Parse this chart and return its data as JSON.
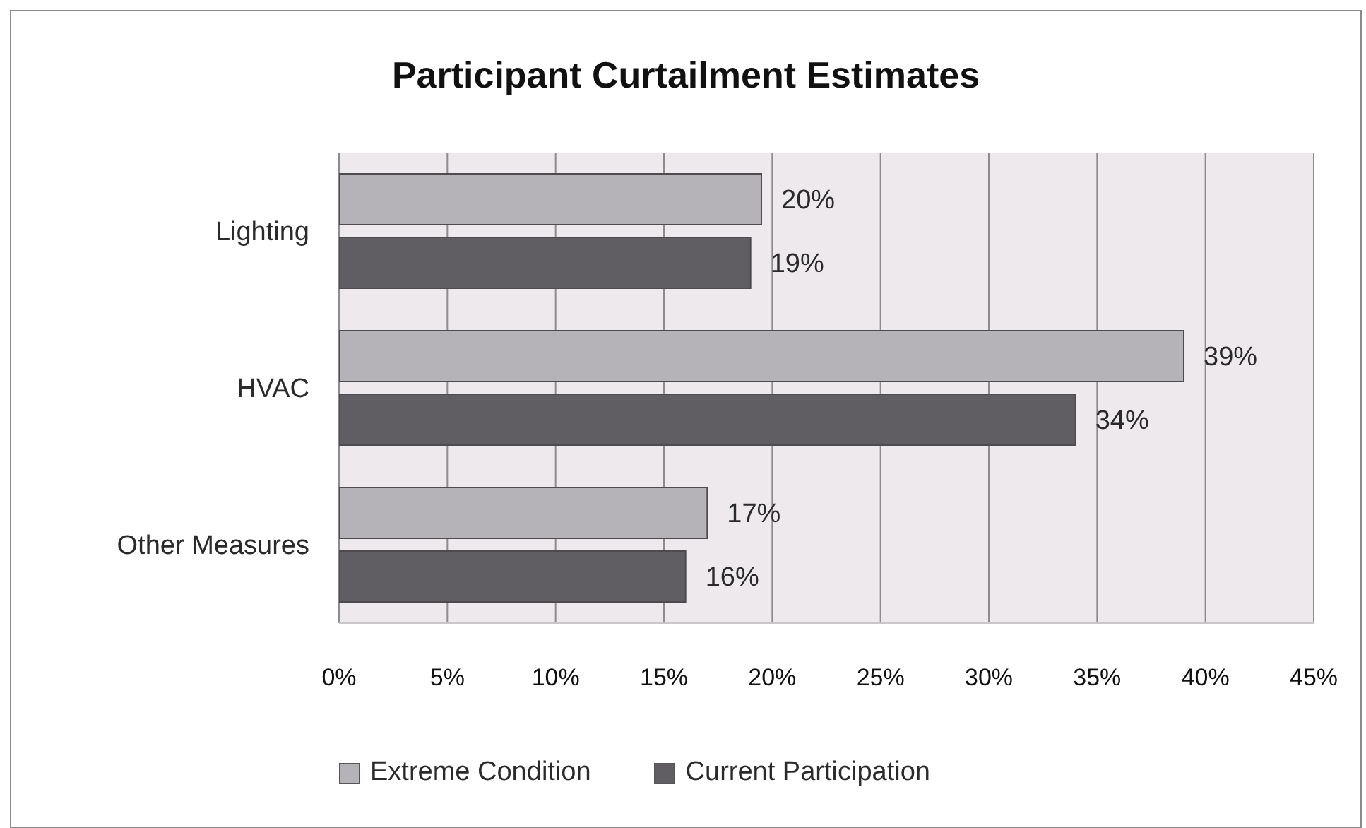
{
  "chart_data": {
    "type": "bar",
    "orientation": "horizontal",
    "title": "Participant Curtailment Estimates",
    "categories": [
      "Lighting",
      "HVAC",
      "Other Measures"
    ],
    "series": [
      {
        "name": "Extreme Condition",
        "color": "#b5b3b7",
        "values": [
          19.5,
          39,
          17
        ],
        "value_labels": [
          "20%",
          "39%",
          "17%"
        ]
      },
      {
        "name": "Current Participation",
        "color": "#615e63",
        "values": [
          19,
          34,
          16
        ],
        "value_labels": [
          "19%",
          "34%",
          "16%"
        ]
      }
    ],
    "xlim": [
      0,
      45
    ],
    "xticks": [
      {
        "value": 0,
        "label": "0%"
      },
      {
        "value": 5,
        "label": "5%"
      },
      {
        "value": 10,
        "label": "10%"
      },
      {
        "value": 15,
        "label": "15%"
      },
      {
        "value": 20,
        "label": "20%"
      },
      {
        "value": 25,
        "label": "25%"
      },
      {
        "value": 30,
        "label": "30%"
      },
      {
        "value": 35,
        "label": "35%"
      },
      {
        "value": 40,
        "label": "40%"
      },
      {
        "value": 45,
        "label": "45%"
      }
    ],
    "grid": "x",
    "legend": "bottom"
  }
}
